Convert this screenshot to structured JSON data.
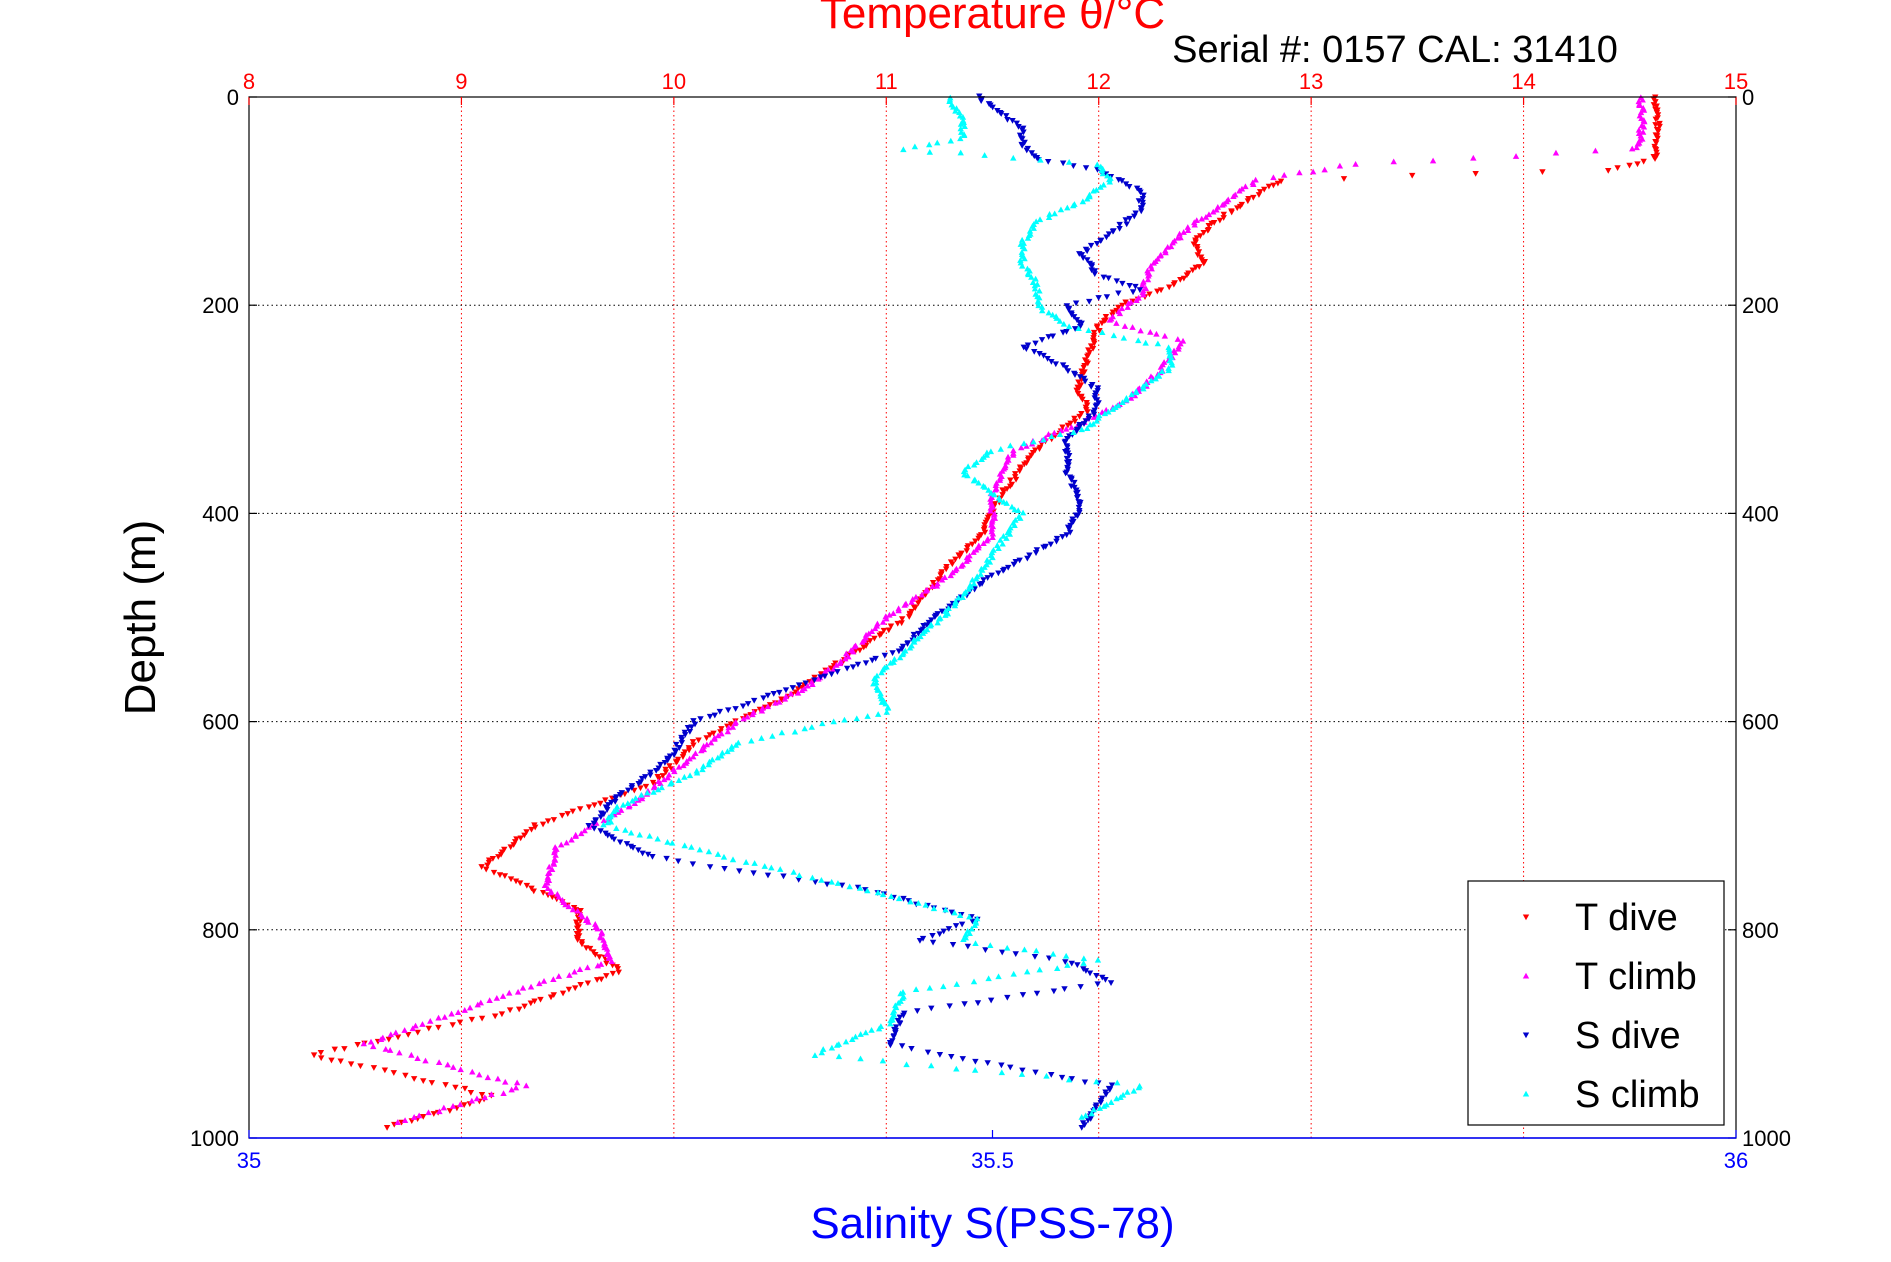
{
  "chart_data": {
    "type": "scatter",
    "title": "Temperature θ/°C",
    "annotation": "Serial #: 0157  CAL: 31410",
    "xlabel": "Salinity S(PSS-78)",
    "ylabel": "Depth (m)",
    "grid": true,
    "legend_position": "bottom-right",
    "colors": {
      "temperature_axis": "#ff0000",
      "salinity_axis": "#0000ff",
      "t_dive": "#ff0000",
      "t_climb": "#ff00ff",
      "s_dive": "#0000cc",
      "s_climb": "#00ffff"
    },
    "x_top": {
      "label": "Temperature θ/°C",
      "lim": [
        8,
        15
      ],
      "ticks": [
        8,
        9,
        10,
        11,
        12,
        13,
        14,
        15
      ],
      "tick_labels": [
        "8",
        "9",
        "10",
        "11",
        "12",
        "13",
        "14",
        "15"
      ]
    },
    "x_bottom": {
      "label": "Salinity S(PSS-78)",
      "lim": [
        35,
        36
      ],
      "ticks": [
        35,
        35.5,
        36
      ],
      "tick_labels": [
        "35",
        "35.5",
        "36"
      ]
    },
    "y": {
      "label": "Depth (m)",
      "lim": [
        0,
        1000
      ],
      "reversed": true,
      "ticks": [
        0,
        200,
        400,
        600,
        800,
        1000
      ],
      "tick_labels": [
        "0",
        "200",
        "400",
        "600",
        "800",
        "1000"
      ]
    },
    "series": [
      {
        "name": "T dive",
        "axis": "temperature",
        "marker": "triangle-down",
        "color": "#ff0000",
        "depth": [
          0,
          20,
          40,
          60,
          70,
          80,
          100,
          120,
          140,
          160,
          180,
          200,
          220,
          250,
          280,
          300,
          340,
          380,
          420,
          460,
          500,
          540,
          580,
          620,
          660,
          700,
          740,
          780,
          810,
          840,
          880,
          920,
          960,
          990
        ],
        "temperature": [
          14.62,
          14.63,
          14.63,
          14.62,
          14.4,
          12.85,
          12.7,
          12.55,
          12.45,
          12.5,
          12.35,
          12.1,
          12.0,
          11.95,
          11.9,
          11.95,
          11.7,
          11.55,
          11.45,
          11.25,
          11.1,
          10.8,
          10.5,
          10.1,
          9.9,
          9.35,
          9.1,
          9.55,
          9.55,
          9.75,
          9.2,
          8.3,
          9.15,
          8.65
        ]
      },
      {
        "name": "T climb",
        "axis": "temperature",
        "marker": "triangle-up",
        "color": "#ff00ff",
        "depth": [
          0,
          20,
          40,
          50,
          65,
          80,
          100,
          130,
          160,
          190,
          215,
          235,
          260,
          290,
          310,
          340,
          380,
          420,
          460,
          500,
          540,
          570,
          600,
          640,
          680,
          720,
          760,
          800,
          830,
          870,
          910,
          950,
          985
        ],
        "temperature": [
          14.55,
          14.56,
          14.55,
          14.52,
          13.2,
          12.75,
          12.6,
          12.4,
          12.25,
          12.2,
          12.05,
          12.4,
          12.3,
          12.15,
          11.95,
          11.6,
          11.5,
          11.5,
          11.3,
          11.0,
          10.8,
          10.6,
          10.3,
          10.05,
          9.8,
          9.45,
          9.4,
          9.65,
          9.7,
          9.1,
          8.55,
          9.3,
          8.7
        ]
      },
      {
        "name": "S dive",
        "axis": "salinity",
        "marker": "triangle-down",
        "color": "#0000cc",
        "depth": [
          0,
          10,
          30,
          45,
          60,
          70,
          90,
          110,
          130,
          150,
          170,
          185,
          200,
          220,
          240,
          260,
          280,
          300,
          330,
          360,
          390,
          420,
          460,
          500,
          530,
          560,
          600,
          640,
          670,
          700,
          730,
          760,
          790,
          810,
          830,
          850,
          880,
          910,
          950,
          990
        ],
        "salinity": [
          35.49,
          35.5,
          35.52,
          35.52,
          35.53,
          35.57,
          35.6,
          35.6,
          35.58,
          35.56,
          35.57,
          35.6,
          35.55,
          35.56,
          35.52,
          35.55,
          35.57,
          35.57,
          35.55,
          35.55,
          35.56,
          35.55,
          35.5,
          35.46,
          35.44,
          35.38,
          35.3,
          35.28,
          35.25,
          35.23,
          35.27,
          35.41,
          35.49,
          35.45,
          35.55,
          35.58,
          35.44,
          35.43,
          35.58,
          35.56
        ]
      },
      {
        "name": "S climb",
        "axis": "salinity",
        "marker": "triangle-up",
        "color": "#00ffff",
        "depth": [
          0,
          20,
          40,
          50,
          65,
          80,
          100,
          120,
          140,
          160,
          180,
          200,
          220,
          240,
          260,
          280,
          300,
          320,
          340,
          360,
          380,
          400,
          440,
          480,
          520,
          560,
          590,
          620,
          650,
          680,
          700,
          730,
          760,
          790,
          810,
          830,
          860,
          890,
          920,
          950,
          980
        ],
        "salinity": [
          35.47,
          35.48,
          35.48,
          35.44,
          35.57,
          35.58,
          35.56,
          35.53,
          35.52,
          35.52,
          35.53,
          35.53,
          35.55,
          35.62,
          35.62,
          35.6,
          35.58,
          35.56,
          35.5,
          35.48,
          35.5,
          35.52,
          35.5,
          35.48,
          35.45,
          35.42,
          35.43,
          35.33,
          35.3,
          35.25,
          35.24,
          35.32,
          35.41,
          35.49,
          35.48,
          35.57,
          35.44,
          35.43,
          35.38,
          35.6,
          35.56
        ]
      }
    ],
    "legend": [
      "T dive",
      "T climb",
      "S dive",
      "S climb"
    ]
  }
}
